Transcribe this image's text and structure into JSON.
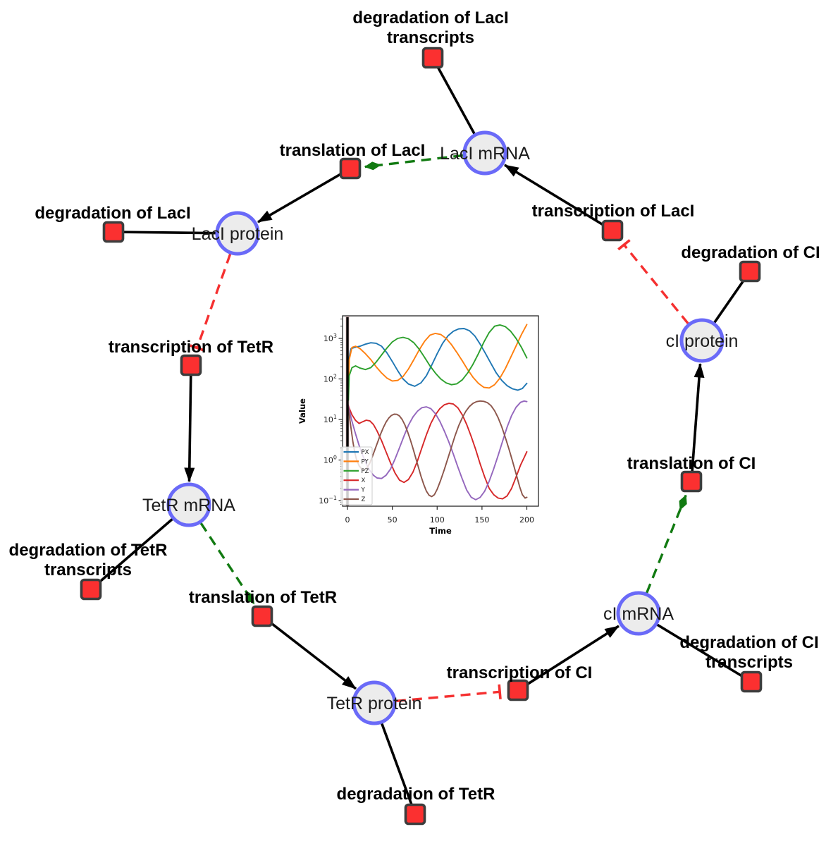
{
  "diagram": {
    "species": {
      "laci_mrna": {
        "label": "LacI mRNA"
      },
      "laci_protein": {
        "label": "LacI protein"
      },
      "ci_protein": {
        "label": "cI protein"
      },
      "tetr_mrna": {
        "label": "TetR mRNA"
      },
      "ci_mrna": {
        "label": "cI mRNA"
      },
      "tetr_protein": {
        "label": "TetR protein"
      }
    },
    "reactions": {
      "degradation_laci_transcripts": {
        "line1": "degradation of LacI",
        "line2": "transcripts"
      },
      "translation_laci": {
        "label": "translation of LacI"
      },
      "transcription_laci": {
        "label": "transcription of LacI"
      },
      "degradation_laci": {
        "label": "degradation of LacI"
      },
      "degradation_ci": {
        "label": "degradation of CI"
      },
      "transcription_tetr": {
        "label": "transcription of TetR"
      },
      "translation_ci": {
        "label": "translation of CI"
      },
      "degradation_tetr_transcripts": {
        "line1": "degradation of TetR",
        "line2": "transcripts"
      },
      "translation_tetr": {
        "label": "translation of TetR"
      },
      "degradation_ci_transcripts": {
        "line1": "degradation of CI",
        "line2": "transcripts"
      },
      "transcription_ci": {
        "label": "transcription of CI"
      },
      "degradation_tetr": {
        "label": "degradation of TetR"
      }
    },
    "colors": {
      "species_fill": "#ececec",
      "species_stroke": "#6a6af8",
      "reaction_fill": "#fb3030",
      "reaction_stroke": "#3d3d3d",
      "edge_black": "#000000",
      "edge_catalysis_green": "#117a11",
      "edge_inhibition_red": "#f53030"
    }
  },
  "chart_data": {
    "type": "line",
    "title": "",
    "xlabel": "Time",
    "ylabel": "Value",
    "yscale": "log",
    "xlim": [
      -6,
      213
    ],
    "ylim": [
      0.073,
      3600
    ],
    "x_ticks": [
      0,
      50,
      100,
      150,
      200
    ],
    "y_tick_exponents": [
      3,
      2,
      1,
      0,
      -1
    ],
    "grid": false,
    "legend_position": "lower left",
    "event_line_x": 0,
    "series": [
      {
        "name": "PX",
        "color": "#1f77b4",
        "points": [
          [
            1,
            60
          ],
          [
            2,
            350
          ],
          [
            4,
            560
          ],
          [
            8,
            600
          ],
          [
            14,
            640
          ],
          [
            20,
            720
          ],
          [
            26,
            780
          ],
          [
            32,
            760
          ],
          [
            38,
            640
          ],
          [
            44,
            440
          ],
          [
            50,
            270
          ],
          [
            56,
            160
          ],
          [
            62,
            100
          ],
          [
            68,
            75
          ],
          [
            75,
            66
          ],
          [
            82,
            80
          ],
          [
            88,
            120
          ],
          [
            94,
            220
          ],
          [
            100,
            420
          ],
          [
            106,
            750
          ],
          [
            112,
            1150
          ],
          [
            118,
            1500
          ],
          [
            124,
            1720
          ],
          [
            130,
            1750
          ],
          [
            136,
            1550
          ],
          [
            142,
            1150
          ],
          [
            148,
            720
          ],
          [
            154,
            420
          ],
          [
            160,
            240
          ],
          [
            166,
            140
          ],
          [
            172,
            92
          ],
          [
            178,
            68
          ],
          [
            184,
            57
          ],
          [
            190,
            53
          ],
          [
            195,
            58
          ],
          [
            200,
            78
          ]
        ]
      },
      {
        "name": "PY",
        "color": "#ff7f0e",
        "points": [
          [
            1,
            40
          ],
          [
            2,
            300
          ],
          [
            5,
            600
          ],
          [
            9,
            640
          ],
          [
            14,
            560
          ],
          [
            20,
            420
          ],
          [
            26,
            300
          ],
          [
            32,
            200
          ],
          [
            38,
            140
          ],
          [
            44,
            105
          ],
          [
            50,
            89
          ],
          [
            56,
            92
          ],
          [
            62,
            115
          ],
          [
            68,
            175
          ],
          [
            74,
            300
          ],
          [
            80,
            520
          ],
          [
            86,
            850
          ],
          [
            92,
            1200
          ],
          [
            98,
            1330
          ],
          [
            104,
            1250
          ],
          [
            110,
            1000
          ],
          [
            116,
            700
          ],
          [
            122,
            450
          ],
          [
            128,
            280
          ],
          [
            134,
            170
          ],
          [
            140,
            110
          ],
          [
            146,
            78
          ],
          [
            152,
            62
          ],
          [
            158,
            60
          ],
          [
            164,
            72
          ],
          [
            170,
            105
          ],
          [
            176,
            180
          ],
          [
            182,
            340
          ],
          [
            188,
            650
          ],
          [
            194,
            1250
          ],
          [
            200,
            2200
          ]
        ]
      },
      {
        "name": "PZ",
        "color": "#2ca02c",
        "points": [
          [
            1,
            30
          ],
          [
            2,
            120
          ],
          [
            5,
            190
          ],
          [
            9,
            210
          ],
          [
            14,
            185
          ],
          [
            20,
            170
          ],
          [
            26,
            190
          ],
          [
            32,
            260
          ],
          [
            38,
            390
          ],
          [
            44,
            580
          ],
          [
            50,
            820
          ],
          [
            56,
            1000
          ],
          [
            62,
            1060
          ],
          [
            68,
            980
          ],
          [
            74,
            780
          ],
          [
            80,
            540
          ],
          [
            86,
            340
          ],
          [
            92,
            210
          ],
          [
            98,
            140
          ],
          [
            104,
            100
          ],
          [
            110,
            80
          ],
          [
            116,
            72
          ],
          [
            122,
            76
          ],
          [
            128,
            95
          ],
          [
            134,
            140
          ],
          [
            140,
            230
          ],
          [
            146,
            420
          ],
          [
            152,
            800
          ],
          [
            158,
            1400
          ],
          [
            164,
            2000
          ],
          [
            170,
            2150
          ],
          [
            176,
            1950
          ],
          [
            182,
            1500
          ],
          [
            188,
            1000
          ],
          [
            194,
            600
          ],
          [
            200,
            330
          ]
        ]
      },
      {
        "name": "X",
        "color": "#d62728",
        "points": [
          [
            0,
            25
          ],
          [
            2,
            19
          ],
          [
            5,
            13
          ],
          [
            9,
            9.5
          ],
          [
            13,
            8
          ],
          [
            17,
            8.8
          ],
          [
            21,
            9.6
          ],
          [
            25,
            9.2
          ],
          [
            29,
            7.5
          ],
          [
            33,
            5.2
          ],
          [
            38,
            3
          ],
          [
            43,
            1.6
          ],
          [
            48,
            0.85
          ],
          [
            53,
            0.48
          ],
          [
            58,
            0.32
          ],
          [
            63,
            0.28
          ],
          [
            68,
            0.33
          ],
          [
            73,
            0.5
          ],
          [
            78,
            0.95
          ],
          [
            83,
            2
          ],
          [
            88,
            4.2
          ],
          [
            93,
            8
          ],
          [
            98,
            13
          ],
          [
            103,
            18.5
          ],
          [
            108,
            23
          ],
          [
            113,
            25
          ],
          [
            118,
            24
          ],
          [
            123,
            19.5
          ],
          [
            128,
            13
          ],
          [
            133,
            7.5
          ],
          [
            138,
            3.8
          ],
          [
            143,
            1.8
          ],
          [
            148,
            0.8
          ],
          [
            153,
            0.38
          ],
          [
            158,
            0.2
          ],
          [
            163,
            0.14
          ],
          [
            168,
            0.115
          ],
          [
            173,
            0.11
          ],
          [
            178,
            0.13
          ],
          [
            183,
            0.2
          ],
          [
            188,
            0.38
          ],
          [
            193,
            0.75
          ],
          [
            197,
            1.15
          ],
          [
            200,
            1.6
          ]
        ]
      },
      {
        "name": "Y",
        "color": "#9467bd",
        "points": [
          [
            0,
            25
          ],
          [
            2,
            17
          ],
          [
            5,
            9
          ],
          [
            9,
            4.4
          ],
          [
            13,
            2.3
          ],
          [
            17,
            1.3
          ],
          [
            21,
            0.8
          ],
          [
            25,
            0.55
          ],
          [
            29,
            0.42
          ],
          [
            33,
            0.36
          ],
          [
            38,
            0.35
          ],
          [
            43,
            0.42
          ],
          [
            48,
            0.6
          ],
          [
            53,
            1.05
          ],
          [
            58,
            2
          ],
          [
            63,
            3.9
          ],
          [
            68,
            7.2
          ],
          [
            73,
            11.5
          ],
          [
            78,
            16
          ],
          [
            83,
            19.5
          ],
          [
            88,
            20.5
          ],
          [
            93,
            18.5
          ],
          [
            98,
            14
          ],
          [
            103,
            9
          ],
          [
            108,
            5.2
          ],
          [
            113,
            2.8
          ],
          [
            118,
            1.4
          ],
          [
            123,
            0.68
          ],
          [
            128,
            0.34
          ],
          [
            133,
            0.18
          ],
          [
            138,
            0.12
          ],
          [
            143,
            0.105
          ],
          [
            148,
            0.12
          ],
          [
            153,
            0.17
          ],
          [
            158,
            0.3
          ],
          [
            163,
            0.6
          ],
          [
            168,
            1.3
          ],
          [
            173,
            2.9
          ],
          [
            178,
            6.5
          ],
          [
            183,
            12.5
          ],
          [
            188,
            20
          ],
          [
            193,
            26.5
          ],
          [
            197,
            28.5
          ],
          [
            200,
            27.5
          ]
        ]
      },
      {
        "name": "Z",
        "color": "#8c564b",
        "points": [
          [
            0,
            25
          ],
          [
            2,
            13
          ],
          [
            4,
            6
          ],
          [
            6,
            2.9
          ],
          [
            8,
            1.6
          ],
          [
            10,
            1.05
          ],
          [
            13,
            0.72
          ],
          [
            16,
            0.6
          ],
          [
            19,
            0.58
          ],
          [
            22,
            0.65
          ],
          [
            25,
            0.85
          ],
          [
            28,
            1.25
          ],
          [
            31,
            1.9
          ],
          [
            34,
            2.9
          ],
          [
            37,
            4.4
          ],
          [
            40,
            6.3
          ],
          [
            43,
            8.6
          ],
          [
            46,
            10.8
          ],
          [
            49,
            12.6
          ],
          [
            52,
            13.5
          ],
          [
            55,
            13.4
          ],
          [
            58,
            12.2
          ],
          [
            61,
            10
          ],
          [
            64,
            7.4
          ],
          [
            67,
            5
          ],
          [
            70,
            3.2
          ],
          [
            73,
            1.95
          ],
          [
            76,
            1.15
          ],
          [
            79,
            0.68
          ],
          [
            82,
            0.4
          ],
          [
            85,
            0.25
          ],
          [
            88,
            0.17
          ],
          [
            91,
            0.135
          ],
          [
            94,
            0.125
          ],
          [
            97,
            0.14
          ],
          [
            100,
            0.19
          ],
          [
            104,
            0.32
          ],
          [
            108,
            0.58
          ],
          [
            112,
            1.1
          ],
          [
            116,
            2.1
          ],
          [
            120,
            4
          ],
          [
            124,
            7
          ],
          [
            128,
            11
          ],
          [
            132,
            16
          ],
          [
            136,
            21
          ],
          [
            140,
            25
          ],
          [
            144,
            27.5
          ],
          [
            148,
            28.5
          ],
          [
            152,
            28
          ],
          [
            156,
            26
          ],
          [
            160,
            22
          ],
          [
            164,
            16.5
          ],
          [
            168,
            11
          ],
          [
            172,
            6.6
          ],
          [
            176,
            3.6
          ],
          [
            180,
            1.9
          ],
          [
            184,
            0.95
          ],
          [
            188,
            0.46
          ],
          [
            192,
            0.22
          ],
          [
            195,
            0.14
          ],
          [
            198,
            0.115
          ],
          [
            200,
            0.12
          ]
        ]
      }
    ]
  }
}
